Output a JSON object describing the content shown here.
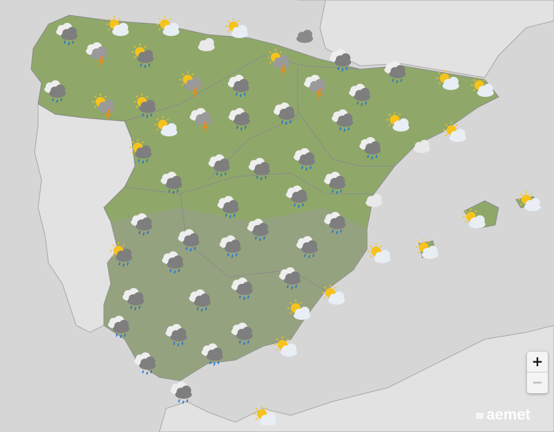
{
  "map": {
    "colors": {
      "sea": "#d6d6d6",
      "neighbour_land": "#e2e2e2",
      "spain_land": "#8fa86a",
      "borders": "#9a9a9a"
    },
    "forecast_icons": [
      "rain",
      "sun-cloud",
      "sun-cloud",
      "sun-cloud",
      "cloud-dark",
      "storm",
      "sun-rain",
      "cloud",
      "sun-storm",
      "rain",
      "rain",
      "sun-cloud",
      "sun-cloud",
      "rain",
      "sun-storm",
      "sun-rain",
      "sun-storm",
      "rain",
      "storm",
      "rain",
      "sun-cloud",
      "storm",
      "rain",
      "rain",
      "rain",
      "sun-cloud",
      "sun-cloud",
      "sun-rain",
      "rain",
      "rain",
      "rain",
      "rain",
      "cloud",
      "rain",
      "rain",
      "rain",
      "cloud",
      "rain",
      "rain",
      "rain",
      "rain",
      "sun-cloud",
      "sun-cloud",
      "rain",
      "rain",
      "rain",
      "sun-rain",
      "rain",
      "sun-cloud",
      "sun-cloud",
      "rain",
      "rain",
      "rain",
      "rain",
      "sun-cloud",
      "sun-cloud",
      "rain",
      "rain",
      "rain",
      "sun-cloud",
      "rain",
      "rain",
      "rain",
      "sun-cloud"
    ]
  },
  "controls": {
    "zoom_in": "+",
    "zoom_out": "−"
  },
  "logo": {
    "text": "aemet"
  }
}
